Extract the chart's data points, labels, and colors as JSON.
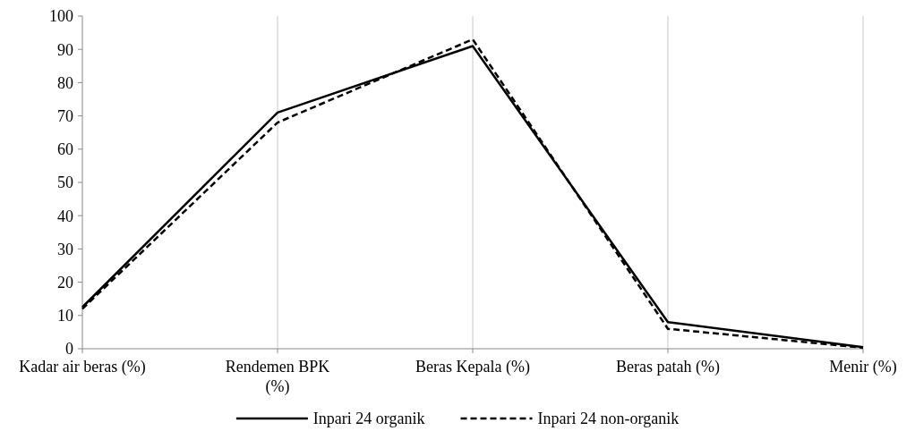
{
  "chart_data": {
    "type": "line",
    "categories": [
      "Kadar air beras (%)",
      "Rendemen BPK (%)",
      "Beras Kepala (%)",
      "Beras patah (%)",
      "Menir (%)"
    ],
    "series": [
      {
        "name": "Inpari 24 organik",
        "color": "#000000",
        "line_style": "solid",
        "values": [
          12.5,
          71,
          91,
          8,
          0.5
        ]
      },
      {
        "name": "Inpari 24 non-organik",
        "color": "#000000",
        "line_style": "dashed",
        "values": [
          12,
          68,
          93,
          6,
          0.3
        ]
      }
    ],
    "ylim": [
      0,
      100
    ],
    "yticks": [
      0,
      10,
      20,
      30,
      40,
      50,
      60,
      70,
      80,
      90,
      100
    ],
    "grid": "x",
    "legend": "bottom",
    "marker": "none"
  }
}
